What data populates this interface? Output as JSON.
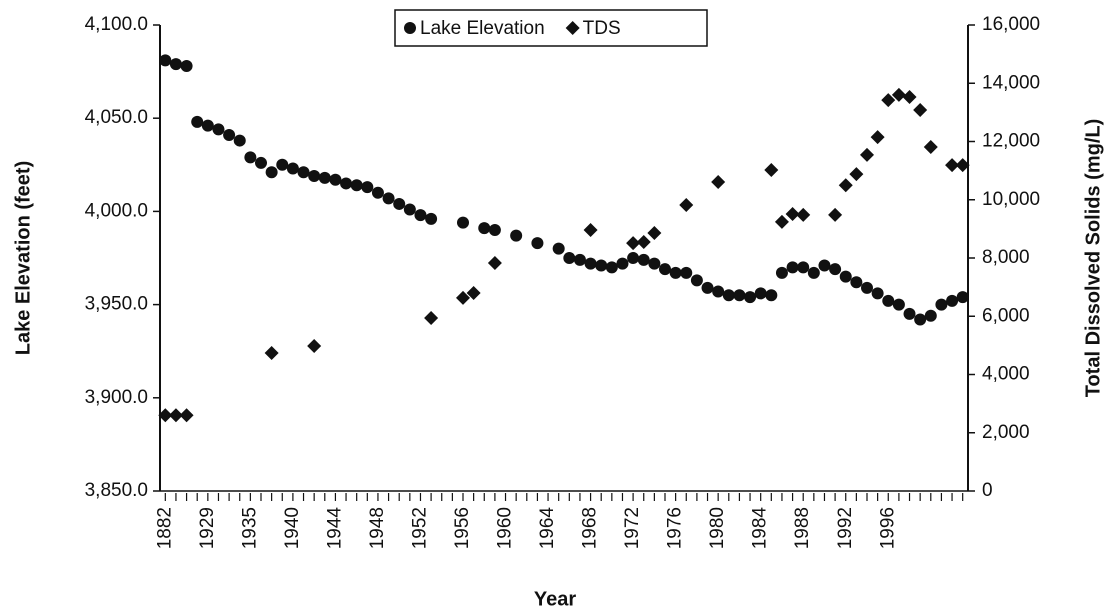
{
  "chart_data": {
    "type": "scatter",
    "xlabel": "Year",
    "ylabel": "Lake Elevation (feet)",
    "y2label": "Total Dissolved Solids (mg/L)",
    "categories": [
      "1882",
      null,
      null,
      null,
      "1929",
      null,
      null,
      null,
      "1935",
      null,
      null,
      null,
      "1940",
      null,
      null,
      null,
      "1944",
      null,
      null,
      null,
      "1948",
      null,
      null,
      null,
      "1952",
      null,
      null,
      null,
      "1956",
      null,
      null,
      null,
      "1960",
      null,
      null,
      null,
      "1964",
      null,
      null,
      null,
      "1968",
      null,
      null,
      null,
      "1972",
      null,
      null,
      null,
      "1976",
      null,
      null,
      null,
      "1980",
      null,
      null,
      null,
      "1984",
      null,
      null,
      null,
      "1988",
      null,
      null,
      null,
      "1992",
      null,
      null,
      null,
      "1996",
      null,
      null,
      null,
      null,
      null,
      null,
      null
    ],
    "series": [
      {
        "name": "Lake Elevation",
        "color": "#111111",
        "marker": "circle",
        "axis": "y",
        "values": [
          4081,
          4079,
          4078,
          4048,
          4046,
          4044,
          4041,
          4038,
          4029,
          4026,
          4021,
          4025,
          4023,
          4021,
          4019,
          4018,
          4017,
          4015,
          4014,
          4013,
          4010,
          4007,
          4004,
          4001,
          3998,
          3996,
          null,
          null,
          3994,
          null,
          3991,
          3990,
          null,
          3987,
          null,
          3983,
          null,
          3980,
          3975,
          3974,
          3972,
          3971,
          3970,
          3972,
          3975,
          3974,
          3972,
          3969,
          3967,
          3967,
          3963,
          3959,
          3957,
          3955,
          3955,
          3954,
          3956,
          3955,
          3967,
          3970,
          3970,
          3967,
          3971,
          3969,
          3965,
          3962,
          3959,
          3956,
          3952,
          3950,
          3945,
          3942,
          3944,
          3950,
          3952,
          3954
        ]
      },
      {
        "name": "TDS",
        "color": "#111111",
        "marker": "diamond",
        "axis": "y2",
        "values": [
          2600,
          2600,
          2600,
          null,
          null,
          null,
          null,
          null,
          null,
          null,
          4740,
          null,
          null,
          null,
          4980,
          null,
          null,
          null,
          null,
          null,
          null,
          null,
          null,
          null,
          null,
          5940,
          null,
          null,
          6630,
          6800,
          null,
          7830,
          null,
          null,
          null,
          null,
          null,
          null,
          null,
          null,
          8960,
          null,
          null,
          null,
          8510,
          8550,
          8860,
          null,
          null,
          9820,
          null,
          null,
          10610,
          null,
          null,
          null,
          null,
          11020,
          9240,
          9510,
          9480,
          null,
          null,
          9480,
          10500,
          10880,
          11540,
          12150,
          13420,
          13600,
          13530,
          13080,
          11810,
          null,
          11190,
          11190
        ]
      }
    ],
    "ylim": [
      3850,
      4100
    ],
    "yticks": [
      {
        "value": 3850,
        "label": "3,850.0"
      },
      {
        "value": 3900,
        "label": "3,900.0"
      },
      {
        "value": 3950,
        "label": "3,950.0"
      },
      {
        "value": 4000,
        "label": "4,000.0"
      },
      {
        "value": 4050,
        "label": "4,050.0"
      },
      {
        "value": 4100,
        "label": "4,100.0"
      }
    ],
    "y2lim": [
      0,
      16000
    ],
    "y2ticks": [
      0,
      {
        "value": 2000,
        "label": "2,000"
      },
      {
        "value": 4000,
        "label": "4,000"
      },
      {
        "value": 6000,
        "label": "6,000"
      },
      {
        "value": 8000,
        "label": "8,000"
      },
      {
        "value": 10000,
        "label": "10,000"
      },
      {
        "value": 12000,
        "label": "12,000"
      },
      {
        "value": 14000,
        "label": "14,000"
      },
      {
        "value": 16000,
        "label": "16,000"
      }
    ],
    "legend": "top"
  }
}
